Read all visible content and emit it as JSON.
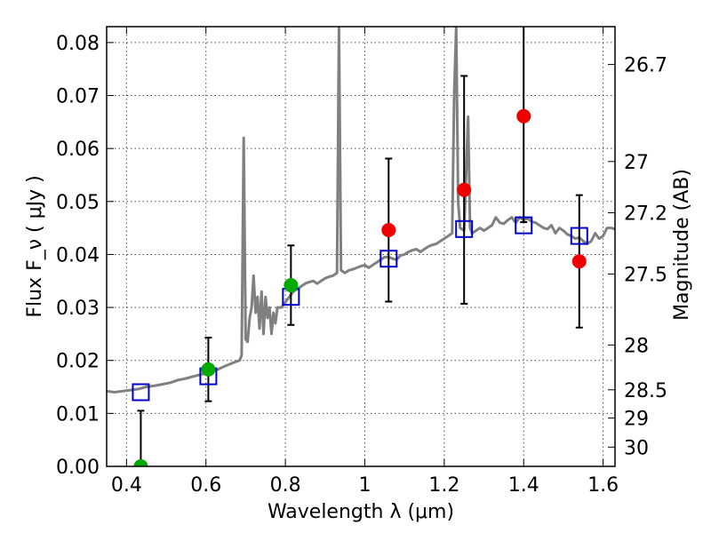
{
  "chart_data": {
    "type": "scatter",
    "xlabel": "Wavelength  λ (μm)",
    "ylabel": "Flux  F_ν  ( μJy )",
    "ylabel_right": "Magnitude (AB)",
    "xlim": [
      0.35,
      1.63
    ],
    "ylim": [
      0.0,
      0.083
    ],
    "grid": true,
    "x_ticks": [
      0.4,
      0.6,
      0.8,
      1.0,
      1.2,
      1.4,
      1.6
    ],
    "x_tick_labels": [
      "0.4",
      "0.6",
      "0.8",
      "1",
      "1.2",
      "1.4",
      "1.6"
    ],
    "y_ticks": [
      0.0,
      0.01,
      0.02,
      0.03,
      0.04,
      0.05,
      0.06,
      0.07,
      0.08
    ],
    "y_tick_labels": [
      "0.00",
      "0.01",
      "0.02",
      "0.03",
      "0.04",
      "0.05",
      "0.06",
      "0.07",
      "0.08"
    ],
    "mag_ticks": [
      26.7,
      27,
      27.2,
      27.5,
      28,
      28.5,
      29,
      30
    ],
    "mag_tick_labels": [
      "26.7",
      "27",
      "27.2",
      "27.5",
      "28",
      "28.5",
      "29",
      "30"
    ],
    "series": [
      {
        "name": "model_spectrum",
        "kind": "line",
        "color": "#808080",
        "points": [
          [
            0.35,
            0.0142
          ],
          [
            0.37,
            0.014
          ],
          [
            0.39,
            0.0142
          ],
          [
            0.41,
            0.0144
          ],
          [
            0.43,
            0.0146
          ],
          [
            0.45,
            0.015
          ],
          [
            0.47,
            0.0152
          ],
          [
            0.49,
            0.0155
          ],
          [
            0.51,
            0.0158
          ],
          [
            0.53,
            0.0163
          ],
          [
            0.55,
            0.0166
          ],
          [
            0.57,
            0.017
          ],
          [
            0.59,
            0.0174
          ],
          [
            0.61,
            0.0178
          ],
          [
            0.63,
            0.0183
          ],
          [
            0.65,
            0.019
          ],
          [
            0.67,
            0.0196
          ],
          [
            0.685,
            0.02
          ],
          [
            0.69,
            0.021
          ],
          [
            0.695,
            0.062
          ],
          [
            0.7,
            0.024
          ],
          [
            0.705,
            0.0235
          ],
          [
            0.71,
            0.028
          ],
          [
            0.715,
            0.03
          ],
          [
            0.72,
            0.036
          ],
          [
            0.725,
            0.029
          ],
          [
            0.73,
            0.032
          ],
          [
            0.735,
            0.026
          ],
          [
            0.74,
            0.033
          ],
          [
            0.745,
            0.025
          ],
          [
            0.75,
            0.032
          ],
          [
            0.755,
            0.028
          ],
          [
            0.76,
            0.03
          ],
          [
            0.765,
            0.025
          ],
          [
            0.77,
            0.029
          ],
          [
            0.775,
            0.027
          ],
          [
            0.78,
            0.03
          ],
          [
            0.79,
            0.03
          ],
          [
            0.8,
            0.031
          ],
          [
            0.81,
            0.032
          ],
          [
            0.82,
            0.033
          ],
          [
            0.83,
            0.0335
          ],
          [
            0.84,
            0.034
          ],
          [
            0.85,
            0.0345
          ],
          [
            0.86,
            0.0348
          ],
          [
            0.87,
            0.035
          ],
          [
            0.88,
            0.0345
          ],
          [
            0.89,
            0.035
          ],
          [
            0.9,
            0.0355
          ],
          [
            0.91,
            0.0358
          ],
          [
            0.92,
            0.036
          ],
          [
            0.93,
            0.0365
          ],
          [
            0.935,
            0.083
          ],
          [
            0.94,
            0.037
          ],
          [
            0.95,
            0.0365
          ],
          [
            0.96,
            0.037
          ],
          [
            0.97,
            0.0372
          ],
          [
            0.98,
            0.0375
          ],
          [
            0.99,
            0.0378
          ],
          [
            1.0,
            0.038
          ],
          [
            1.01,
            0.0375
          ],
          [
            1.02,
            0.038
          ],
          [
            1.03,
            0.0385
          ],
          [
            1.04,
            0.039
          ],
          [
            1.05,
            0.0395
          ],
          [
            1.06,
            0.0395
          ],
          [
            1.07,
            0.0392
          ],
          [
            1.08,
            0.039
          ],
          [
            1.09,
            0.0398
          ],
          [
            1.1,
            0.04
          ],
          [
            1.11,
            0.0405
          ],
          [
            1.12,
            0.0408
          ],
          [
            1.13,
            0.041
          ],
          [
            1.14,
            0.0405
          ],
          [
            1.15,
            0.041
          ],
          [
            1.16,
            0.0415
          ],
          [
            1.17,
            0.0418
          ],
          [
            1.18,
            0.042
          ],
          [
            1.19,
            0.0425
          ],
          [
            1.2,
            0.043
          ],
          [
            1.21,
            0.0435
          ],
          [
            1.22,
            0.044
          ],
          [
            1.225,
            0.07
          ],
          [
            1.23,
            0.083
          ],
          [
            1.235,
            0.05
          ],
          [
            1.24,
            0.045
          ],
          [
            1.25,
            0.0445
          ],
          [
            1.26,
            0.066
          ],
          [
            1.265,
            0.045
          ],
          [
            1.27,
            0.044
          ],
          [
            1.28,
            0.0445
          ],
          [
            1.29,
            0.045
          ],
          [
            1.3,
            0.0445
          ],
          [
            1.31,
            0.045
          ],
          [
            1.32,
            0.0455
          ],
          [
            1.33,
            0.047
          ],
          [
            1.34,
            0.046
          ],
          [
            1.35,
            0.0458
          ],
          [
            1.36,
            0.0465
          ],
          [
            1.37,
            0.047
          ],
          [
            1.38,
            0.046
          ],
          [
            1.39,
            0.047
          ],
          [
            1.4,
            0.0465
          ],
          [
            1.41,
            0.0468
          ],
          [
            1.42,
            0.0462
          ],
          [
            1.43,
            0.046
          ],
          [
            1.44,
            0.0455
          ],
          [
            1.45,
            0.045
          ],
          [
            1.46,
            0.0448
          ],
          [
            1.47,
            0.0455
          ],
          [
            1.48,
            0.044
          ],
          [
            1.49,
            0.045
          ],
          [
            1.5,
            0.0445
          ],
          [
            1.51,
            0.0438
          ],
          [
            1.52,
            0.0435
          ],
          [
            1.53,
            0.043
          ],
          [
            1.54,
            0.0432
          ],
          [
            1.55,
            0.0425
          ],
          [
            1.56,
            0.042
          ],
          [
            1.57,
            0.0425
          ],
          [
            1.58,
            0.044
          ],
          [
            1.59,
            0.043
          ],
          [
            1.6,
            0.0435
          ],
          [
            1.61,
            0.045
          ],
          [
            1.62,
            0.045
          ],
          [
            1.63,
            0.0448
          ]
        ]
      },
      {
        "name": "model_photometry",
        "kind": "open_square",
        "color": "#0000cc",
        "points": [
          [
            0.436,
            0.014
          ],
          [
            0.606,
            0.017
          ],
          [
            0.814,
            0.032
          ],
          [
            1.06,
            0.0392
          ],
          [
            1.25,
            0.0448
          ],
          [
            1.4,
            0.0455
          ],
          [
            1.54,
            0.0435
          ]
        ]
      },
      {
        "name": "observed_flux",
        "kind": "filled_circle",
        "points": [
          {
            "x": 0.436,
            "y": 0.0,
            "err": 0.0105,
            "color": "#00aa00"
          },
          {
            "x": 0.606,
            "y": 0.0183,
            "err": 0.006,
            "color": "#00aa00"
          },
          {
            "x": 0.814,
            "y": 0.0342,
            "err": 0.0075,
            "color": "#00aa00"
          },
          {
            "x": 1.06,
            "y": 0.0446,
            "err": 0.0135,
            "color": "#ee0000"
          },
          {
            "x": 1.25,
            "y": 0.0522,
            "err": 0.0215,
            "color": "#ee0000"
          },
          {
            "x": 1.4,
            "y": 0.0661,
            "err": 0.02,
            "color": "#ee0000"
          },
          {
            "x": 1.54,
            "y": 0.0387,
            "err": 0.0125,
            "color": "#ee0000"
          }
        ]
      }
    ]
  }
}
